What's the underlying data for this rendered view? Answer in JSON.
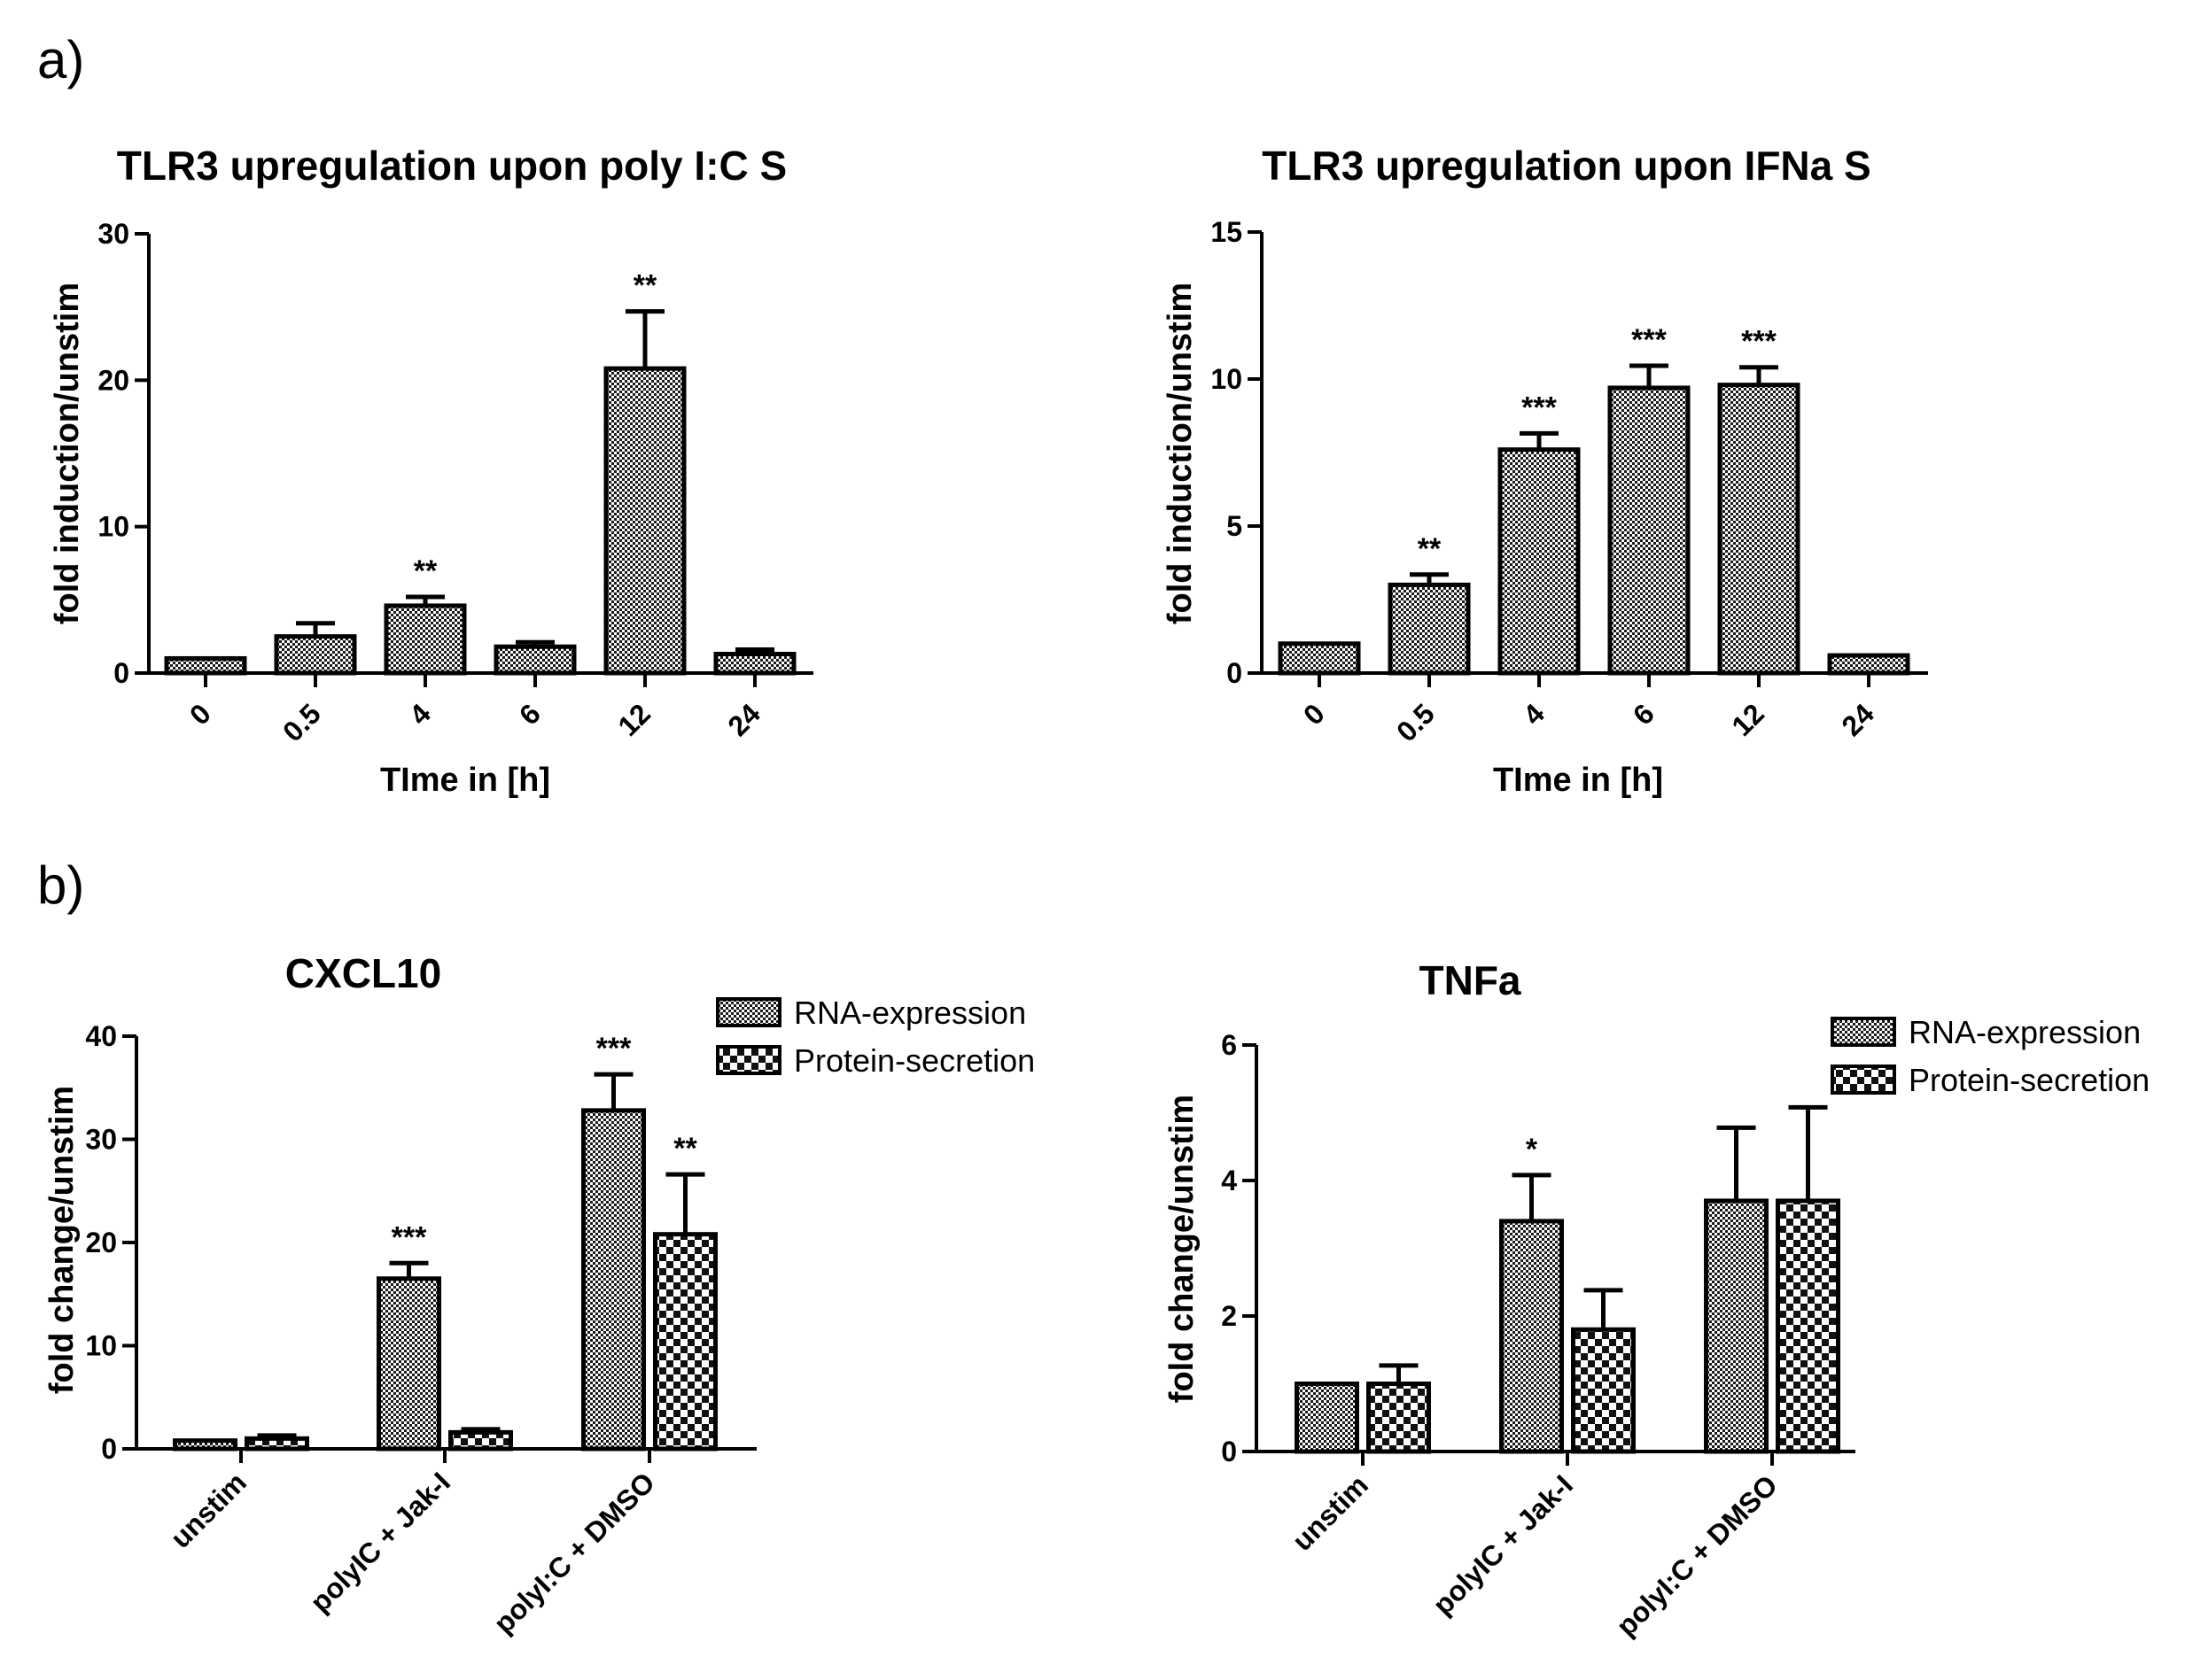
{
  "panel_labels": [
    "a)",
    "b)"
  ],
  "chart_data": [
    {
      "type": "bar",
      "title": "TLR3 upregulation upon poly I:C S",
      "xlabel": "TIme in [h]",
      "ylabel": "fold induction/unstim",
      "ylim": [
        0,
        30
      ],
      "yticks": [
        0,
        10,
        20,
        30
      ],
      "categories": [
        "0",
        "0.5",
        "4",
        "6",
        "12",
        "24"
      ],
      "series": [
        {
          "name": "",
          "pattern": "fine",
          "values": [
            1.0,
            2.5,
            4.6,
            1.8,
            20.8,
            1.3
          ],
          "errors": [
            0.0,
            0.9,
            0.6,
            0.3,
            3.9,
            0.3
          ]
        }
      ],
      "significance": [
        "",
        "",
        "**",
        "",
        "**",
        ""
      ],
      "legend": []
    },
    {
      "type": "bar",
      "title": "TLR3 upregulation upon IFNa S",
      "xlabel": "TIme in [h]",
      "ylabel": "fold induction/unstim",
      "ylim": [
        0,
        15
      ],
      "yticks": [
        0,
        5,
        10,
        15
      ],
      "categories": [
        "0",
        "0.5",
        "4",
        "6",
        "12",
        "24"
      ],
      "series": [
        {
          "name": "",
          "pattern": "fine",
          "values": [
            1.0,
            3.0,
            7.6,
            9.7,
            9.8,
            0.6
          ],
          "errors": [
            0.0,
            0.35,
            0.55,
            0.75,
            0.6,
            0.0
          ]
        }
      ],
      "significance": [
        "",
        "**",
        "***",
        "***",
        "***",
        ""
      ],
      "legend": []
    },
    {
      "type": "bar",
      "title": "CXCL10",
      "xlabel": "",
      "ylabel": "fold change/unstim",
      "ylim": [
        0,
        40
      ],
      "yticks": [
        0,
        10,
        20,
        30,
        40
      ],
      "categories": [
        "unstim",
        "polyIC + Jak-I",
        "polyI:C + DMSO"
      ],
      "series": [
        {
          "name": "RNA-expression",
          "pattern": "fine",
          "values": [
            0.8,
            16.5,
            32.8
          ],
          "errors": [
            0.0,
            1.5,
            3.5
          ]
        },
        {
          "name": "Protein-secretion",
          "pattern": "check",
          "values": [
            1.0,
            1.6,
            20.8
          ],
          "errors": [
            0.3,
            0.3,
            5.8
          ]
        }
      ],
      "significance": [
        [
          "",
          ""
        ],
        [
          "***",
          ""
        ],
        [
          "***",
          "**"
        ]
      ],
      "legend": [
        "RNA-expression",
        "Protein-secretion"
      ]
    },
    {
      "type": "bar",
      "title": "TNFa",
      "xlabel": "",
      "ylabel": "fold change/unstim",
      "ylim": [
        0,
        6
      ],
      "yticks": [
        0,
        2,
        4,
        6
      ],
      "categories": [
        "unstim",
        "polyIC + Jak-I",
        "polyI:C + DMSO"
      ],
      "series": [
        {
          "name": "RNA-expression",
          "pattern": "fine",
          "values": [
            1.0,
            3.4,
            3.7
          ],
          "errors": [
            0.0,
            0.68,
            1.08
          ]
        },
        {
          "name": "Protein-secretion",
          "pattern": "check",
          "values": [
            1.0,
            1.8,
            3.7
          ],
          "errors": [
            0.27,
            0.58,
            1.38
          ]
        }
      ],
      "significance": [
        [
          "",
          ""
        ],
        [
          "*",
          ""
        ],
        [
          "",
          ""
        ]
      ],
      "legend": [
        "RNA-expression",
        "Protein-secretion"
      ]
    }
  ]
}
